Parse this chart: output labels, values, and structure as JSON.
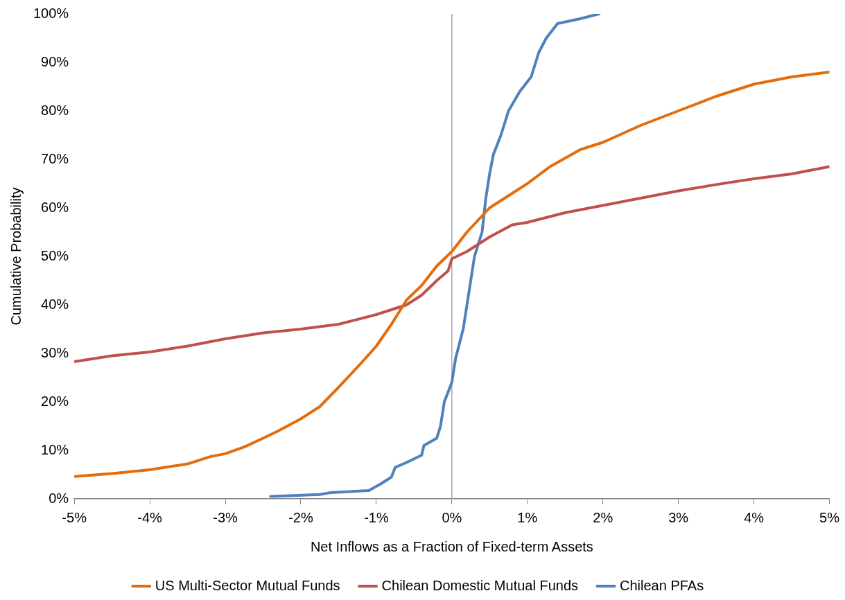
{
  "chart_data": {
    "type": "line",
    "xlabel": "Net Inflows as a Fraction of Fixed-term Assets",
    "ylabel": "Cumulative Probability",
    "xlim": [
      -5,
      5
    ],
    "ylim": [
      0,
      100
    ],
    "xticks": [
      {
        "value": -5,
        "label": "-5%"
      },
      {
        "value": -4,
        "label": "-4%"
      },
      {
        "value": -3,
        "label": "-3%"
      },
      {
        "value": -2,
        "label": "-2%"
      },
      {
        "value": -1,
        "label": "-1%"
      },
      {
        "value": 0,
        "label": "0%"
      },
      {
        "value": 1,
        "label": "1%"
      },
      {
        "value": 2,
        "label": "2%"
      },
      {
        "value": 3,
        "label": "3%"
      },
      {
        "value": 4,
        "label": "4%"
      },
      {
        "value": 5,
        "label": "5%"
      }
    ],
    "yticks": [
      {
        "value": 0,
        "label": "0%"
      },
      {
        "value": 10,
        "label": "10%"
      },
      {
        "value": 20,
        "label": "20%"
      },
      {
        "value": 30,
        "label": "30%"
      },
      {
        "value": 40,
        "label": "40%"
      },
      {
        "value": 50,
        "label": "50%"
      },
      {
        "value": 60,
        "label": "60%"
      },
      {
        "value": 70,
        "label": "70%"
      },
      {
        "value": 80,
        "label": "80%"
      },
      {
        "value": 90,
        "label": "90%"
      },
      {
        "value": 100,
        "label": "100%"
      }
    ],
    "grid": false,
    "legend": "bottom",
    "marker": "none",
    "line_style": "solid",
    "ref_lines": [
      {
        "axis": "x",
        "value": 0,
        "color": "#a6a6a6"
      }
    ],
    "series": [
      {
        "name": "US Multi-Sector Mutual Funds",
        "color": "#e46c0a",
        "x": [
          -5,
          -4.5,
          -4,
          -3.5,
          -3.2,
          -3,
          -2.75,
          -2.5,
          -2.3,
          -2,
          -1.75,
          -1.5,
          -1.2,
          -1,
          -0.8,
          -0.6,
          -0.4,
          -0.2,
          0,
          0.2,
          0.5,
          0.8,
          1,
          1.3,
          1.7,
          2,
          2.5,
          3,
          3.5,
          4,
          4.5,
          5
        ],
        "values": [
          4.6,
          5.2,
          6,
          7.2,
          8.7,
          9.3,
          10.7,
          12.5,
          14,
          16.5,
          19,
          23,
          28,
          31.5,
          36,
          41,
          44,
          48,
          51,
          55,
          60,
          63,
          65,
          68.5,
          72,
          73.5,
          77,
          80,
          83,
          85.5,
          87,
          88
        ]
      },
      {
        "name": "Chilean Domestic Mutual Funds",
        "color": "#c0504d",
        "x": [
          -5,
          -4.5,
          -4,
          -3.5,
          -3,
          -2.5,
          -2,
          -1.5,
          -1,
          -0.6,
          -0.4,
          -0.2,
          -0.05,
          0,
          0.2,
          0.5,
          0.8,
          1,
          1.5,
          2,
          2.5,
          3,
          3.5,
          4,
          4.5,
          5
        ],
        "values": [
          28.3,
          29.5,
          30.3,
          31.5,
          33,
          34.2,
          35,
          36,
          38,
          40,
          42,
          45,
          47,
          49.5,
          51,
          54,
          56.5,
          57,
          59,
          60.5,
          62,
          63.5,
          64.8,
          66,
          67,
          68.5
        ]
      },
      {
        "name": "Chilean PFAs",
        "color": "#4f81bd",
        "x": [
          -2.4,
          -1.75,
          -1.6,
          -1.1,
          -0.95,
          -0.8,
          -0.75,
          -0.6,
          -0.4,
          -0.37,
          -0.2,
          -0.15,
          -0.1,
          0,
          0.05,
          0.15,
          0.22,
          0.3,
          0.4,
          0.45,
          0.5,
          0.55,
          0.65,
          0.75,
          0.9,
          1.05,
          1.15,
          1.25,
          1.4,
          1.7,
          1.95
        ],
        "values": [
          0.5,
          0.9,
          1.3,
          1.7,
          3,
          4.5,
          6.5,
          7.5,
          9,
          11,
          12.5,
          15,
          20,
          24,
          29,
          35,
          42,
          50,
          55,
          62,
          67,
          71,
          75,
          80,
          84,
          87,
          92,
          95,
          98,
          99,
          100
        ]
      }
    ]
  }
}
